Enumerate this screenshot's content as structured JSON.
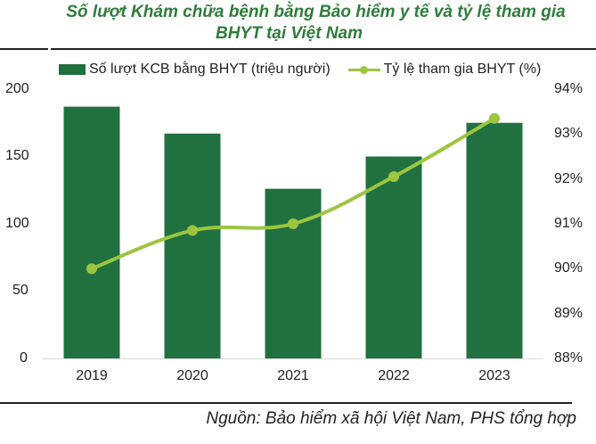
{
  "title": {
    "line1": "Số lượt Khám chữa bệnh bằng Bảo hiểm y tế và tỷ lệ tham gia",
    "line2": "BHYT tại Việt Nam"
  },
  "legend": {
    "bar_label": "Số lượt KCB bằng BHYT (triệu người)",
    "line_label": "Tỷ lệ tham gia BHYT (%)"
  },
  "axes": {
    "left_ticks": [
      "200",
      "150",
      "100",
      "50",
      "0"
    ],
    "right_ticks": [
      "94%",
      "93%",
      "92%",
      "91%",
      "90%",
      "89%",
      "88%"
    ],
    "x_ticks": [
      "2019",
      "2020",
      "2021",
      "2022",
      "2023"
    ]
  },
  "colors": {
    "bar": "#217140",
    "line": "#9cc63f",
    "title": "#2e7d3a"
  },
  "source": "Nguồn: Bảo hiểm xã hội Việt Nam, PHS tổng hợp",
  "chart_data": {
    "type": "bar+line",
    "title": "Số lượt Khám chữa bệnh bằng Bảo hiểm y tế và tỷ lệ tham gia BHYT tại Việt Nam",
    "categories": [
      "2019",
      "2020",
      "2021",
      "2022",
      "2023"
    ],
    "series": [
      {
        "name": "Số lượt KCB bằng BHYT (triệu người)",
        "type": "bar",
        "axis": "left",
        "values": [
          187,
          167,
          126,
          150,
          175
        ]
      },
      {
        "name": "Tỷ lệ tham gia BHYT (%)",
        "type": "line",
        "axis": "right",
        "values": [
          90.0,
          90.85,
          91.0,
          92.05,
          93.35
        ]
      }
    ],
    "ylim_left": [
      0,
      200
    ],
    "ylim_right": [
      88,
      94
    ],
    "xlabel": "",
    "ylabel_left": "",
    "ylabel_right": "",
    "grid": false,
    "legend_position": "top"
  }
}
